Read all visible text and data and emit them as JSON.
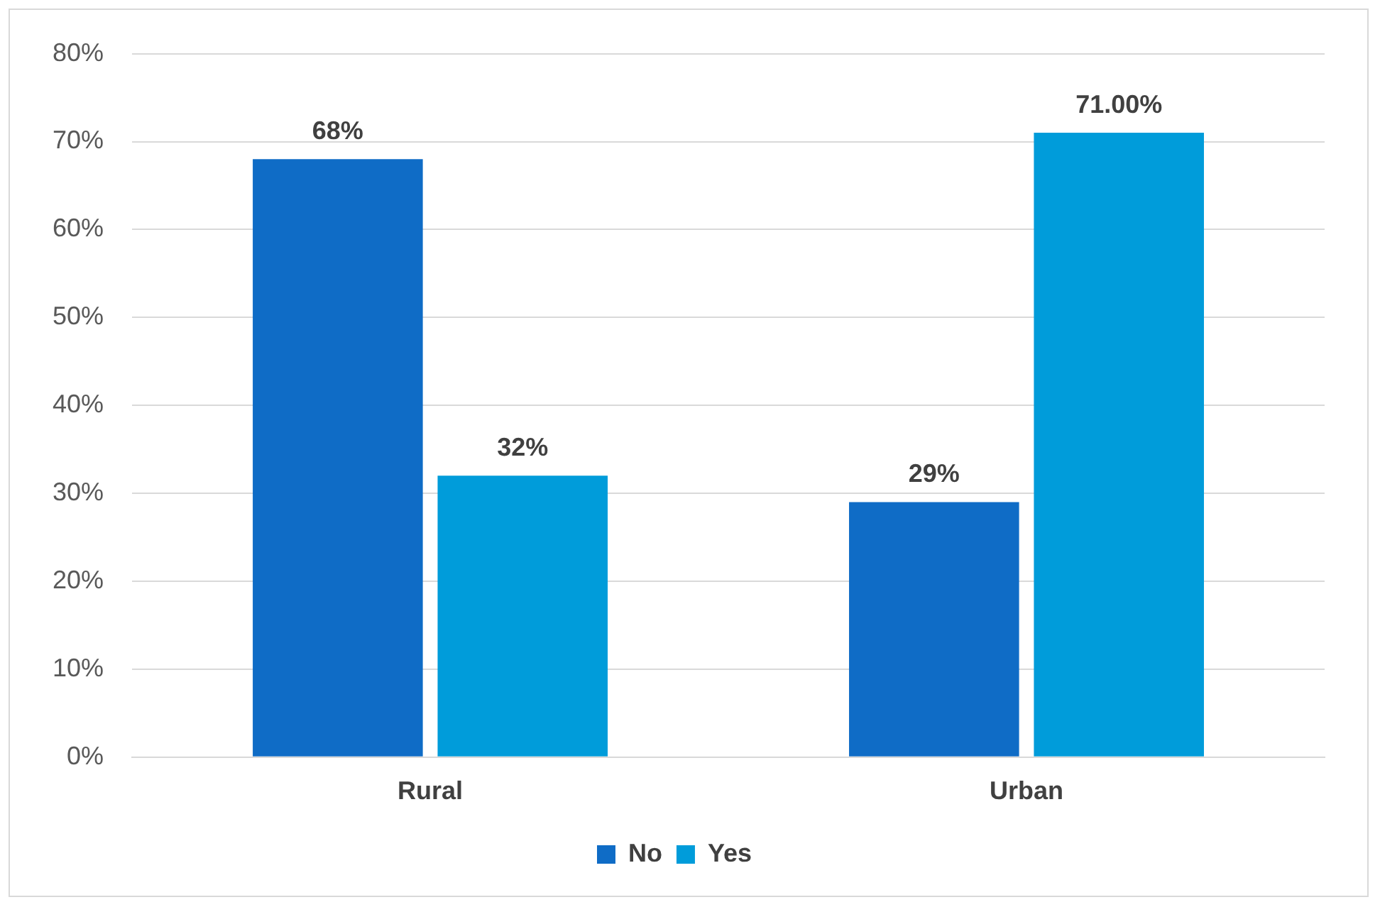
{
  "chart_data": {
    "type": "bar",
    "categories": [
      "Rural",
      "Urban"
    ],
    "series": [
      {
        "name": "No",
        "color": "#0f6cc6",
        "values": [
          68,
          29
        ],
        "value_labels": [
          "68%",
          "29%"
        ]
      },
      {
        "name": "Yes",
        "color": "#009cda",
        "values": [
          32,
          71
        ],
        "value_labels": [
          "32%",
          "71.00%"
        ]
      }
    ],
    "ylim": [
      0,
      80
    ],
    "yticks": [
      {
        "value": 0,
        "label": "0%"
      },
      {
        "value": 10,
        "label": "10%"
      },
      {
        "value": 20,
        "label": "20%"
      },
      {
        "value": 30,
        "label": "30%"
      },
      {
        "value": 40,
        "label": "40%"
      },
      {
        "value": 50,
        "label": "50%"
      },
      {
        "value": 60,
        "label": "60%"
      },
      {
        "value": 70,
        "label": "70%"
      },
      {
        "value": 80,
        "label": "80%"
      }
    ],
    "grid": "y",
    "legend": "bottom"
  }
}
